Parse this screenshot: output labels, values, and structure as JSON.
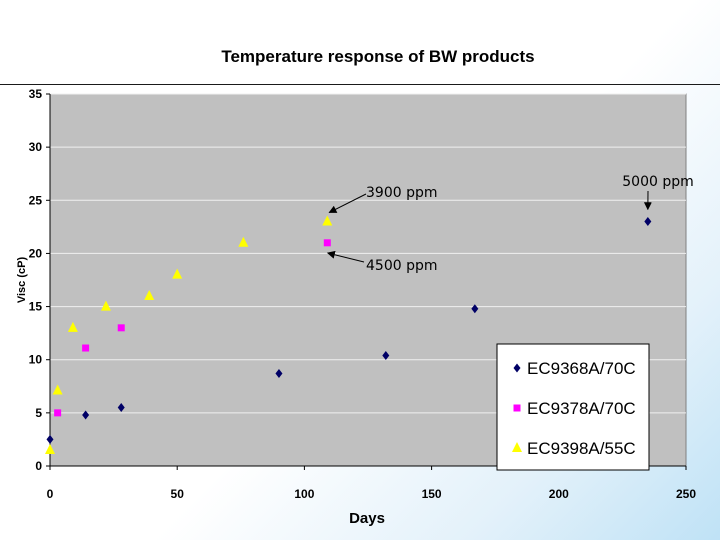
{
  "chart_data": {
    "type": "scatter",
    "title": "Temperature response of BW products",
    "xlabel": "Days",
    "ylabel": "Visc (cP)",
    "xlim": [
      0,
      250
    ],
    "ylim": [
      0,
      35
    ],
    "xticks": [
      0,
      50,
      100,
      150,
      200,
      250
    ],
    "yticks": [
      0,
      5,
      10,
      15,
      20,
      25,
      30,
      35
    ],
    "grid": "horizontal",
    "plot_background": "#c0c0c0",
    "legend_position": "bottom-right",
    "series": [
      {
        "name": "EC9368A/70C",
        "marker": "diamond",
        "color": "#000066",
        "points": [
          [
            0,
            2.5
          ],
          [
            14,
            4.8
          ],
          [
            28,
            5.5
          ],
          [
            90,
            8.7
          ],
          [
            132,
            10.4
          ],
          [
            167,
            14.8
          ],
          [
            235,
            23
          ]
        ]
      },
      {
        "name": "EC9378A/70C",
        "marker": "square",
        "color": "#ff00ff",
        "points": [
          [
            3,
            5
          ],
          [
            14,
            11.1
          ],
          [
            28,
            13
          ],
          [
            109,
            21
          ]
        ]
      },
      {
        "name": "EC9398A/55C",
        "marker": "triangle",
        "color": "#ffff00",
        "points": [
          [
            0,
            1.5
          ],
          [
            3,
            7.1
          ],
          [
            9,
            13
          ],
          [
            22,
            15
          ],
          [
            39,
            16
          ],
          [
            50,
            18
          ],
          [
            76,
            21
          ],
          [
            109,
            23
          ]
        ]
      }
    ],
    "annotations": [
      {
        "text": "3900 ppm",
        "x": 111,
        "y": 23.1
      },
      {
        "text": "4500 ppm",
        "x": 110,
        "y": 20.6
      },
      {
        "text": "5000 ppm",
        "x": 235,
        "y": 23.5
      }
    ]
  }
}
